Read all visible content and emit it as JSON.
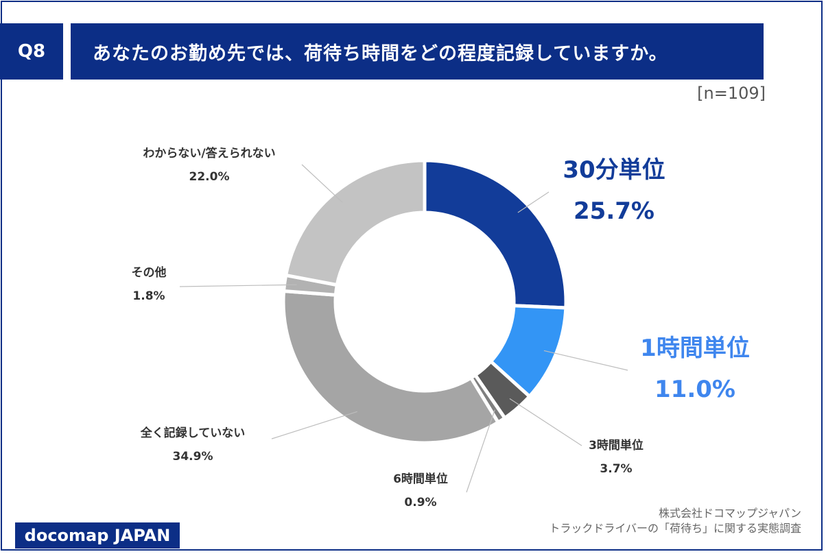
{
  "header": {
    "question_no": "Q8",
    "title": "あなたのお勤め先では、荷待ち時間をどの程度記録していますか。",
    "sample": "[n=109]"
  },
  "colors": {
    "brand": "#0c2e86",
    "slice_30min": "#123c99",
    "slice_1h": "#3395f5",
    "slice_3h": "#5a5a5a",
    "slice_6h": "#7f7f7f",
    "slice_none": "#a5a5a5",
    "slice_other": "#b2b2b2",
    "slice_unknown": "#c3c3c3"
  },
  "chart_data": {
    "type": "pie",
    "donut": true,
    "categories": [
      "30分単位",
      "1時間単位",
      "3時間単位",
      "6時間単位",
      "全く記録していない",
      "その他",
      "わからない/答えられない"
    ],
    "values": [
      25.7,
      11.0,
      3.7,
      0.9,
      34.9,
      1.8,
      22.0
    ],
    "labels": [
      "25.7%",
      "11.0%",
      "3.7%",
      "0.9%",
      "34.9%",
      "1.8%",
      "22.0%"
    ]
  },
  "footer": {
    "logo": "docomap JAPAN",
    "source_line1": "株式会社ドコマップジャパン",
    "source_line2": "トラックドライバーの「荷待ち」に関する実態調査"
  }
}
